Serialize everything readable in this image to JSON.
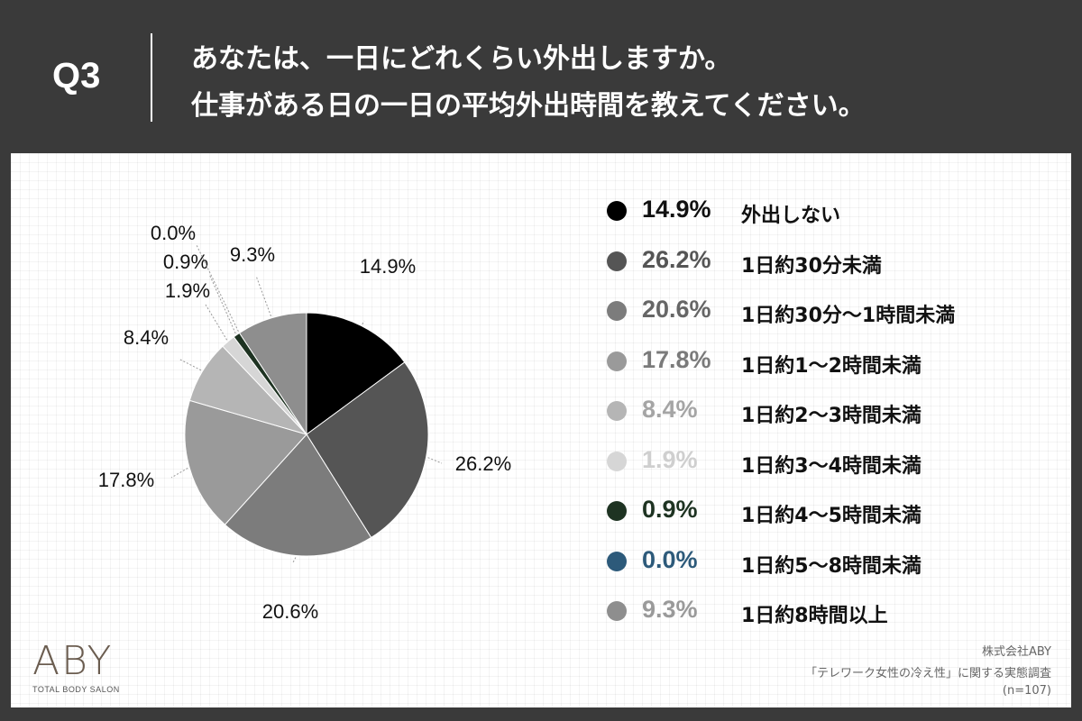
{
  "header": {
    "q_label": "Q3",
    "title_line1": "あなたは、一日にどれくらい外出しますか。",
    "title_line2": "仕事がある日の一日の平均外出時間を教えてください。"
  },
  "chart_data": {
    "type": "pie",
    "start": "top, clockwise",
    "slices": [
      {
        "label": "外出しない",
        "value": 14.9,
        "display": "14.9%",
        "color": "#000000",
        "legend_text_color": "#111111"
      },
      {
        "label": "1日約30分未満",
        "value": 26.2,
        "display": "26.2%",
        "color": "#555555",
        "legend_text_color": "#555555"
      },
      {
        "label": "1日約30分〜1時間未満",
        "value": 20.6,
        "display": "20.6%",
        "color": "#7c7c7c",
        "legend_text_color": "#666666"
      },
      {
        "label": "1日約1〜2時間未満",
        "value": 17.8,
        "display": "17.8%",
        "color": "#9a9a9a",
        "legend_text_color": "#7a7a7a"
      },
      {
        "label": "1日約2〜3時間未満",
        "value": 8.4,
        "display": "8.4%",
        "color": "#b5b5b5",
        "legend_text_color": "#a5a5a5"
      },
      {
        "label": "1日約3〜4時間未満",
        "value": 1.9,
        "display": "1.9%",
        "color": "#d6d6d6",
        "legend_text_color": "#cfcfcf"
      },
      {
        "label": "1日約4〜5時間未満",
        "value": 0.9,
        "display": "0.9%",
        "color": "#1e3322",
        "legend_text_color": "#1e3322"
      },
      {
        "label": "1日約5〜8時間未満",
        "value": 0.0,
        "display": "0.0%",
        "color": "#2d5a7a",
        "legend_text_color": "#2d5a7a"
      },
      {
        "label": "1日約8時間以上",
        "value": 9.3,
        "display": "9.3%",
        "color": "#8e8e8e",
        "legend_text_color": "#9a9a9a"
      }
    ]
  },
  "footer": {
    "logo_text": "ABY",
    "logo_sub": "TOTAL BODY SALON",
    "source_company": "株式会社ABY",
    "source_survey": "「テレワーク女性の冷え性」に関する実態調査",
    "source_n": "(n=107)"
  }
}
